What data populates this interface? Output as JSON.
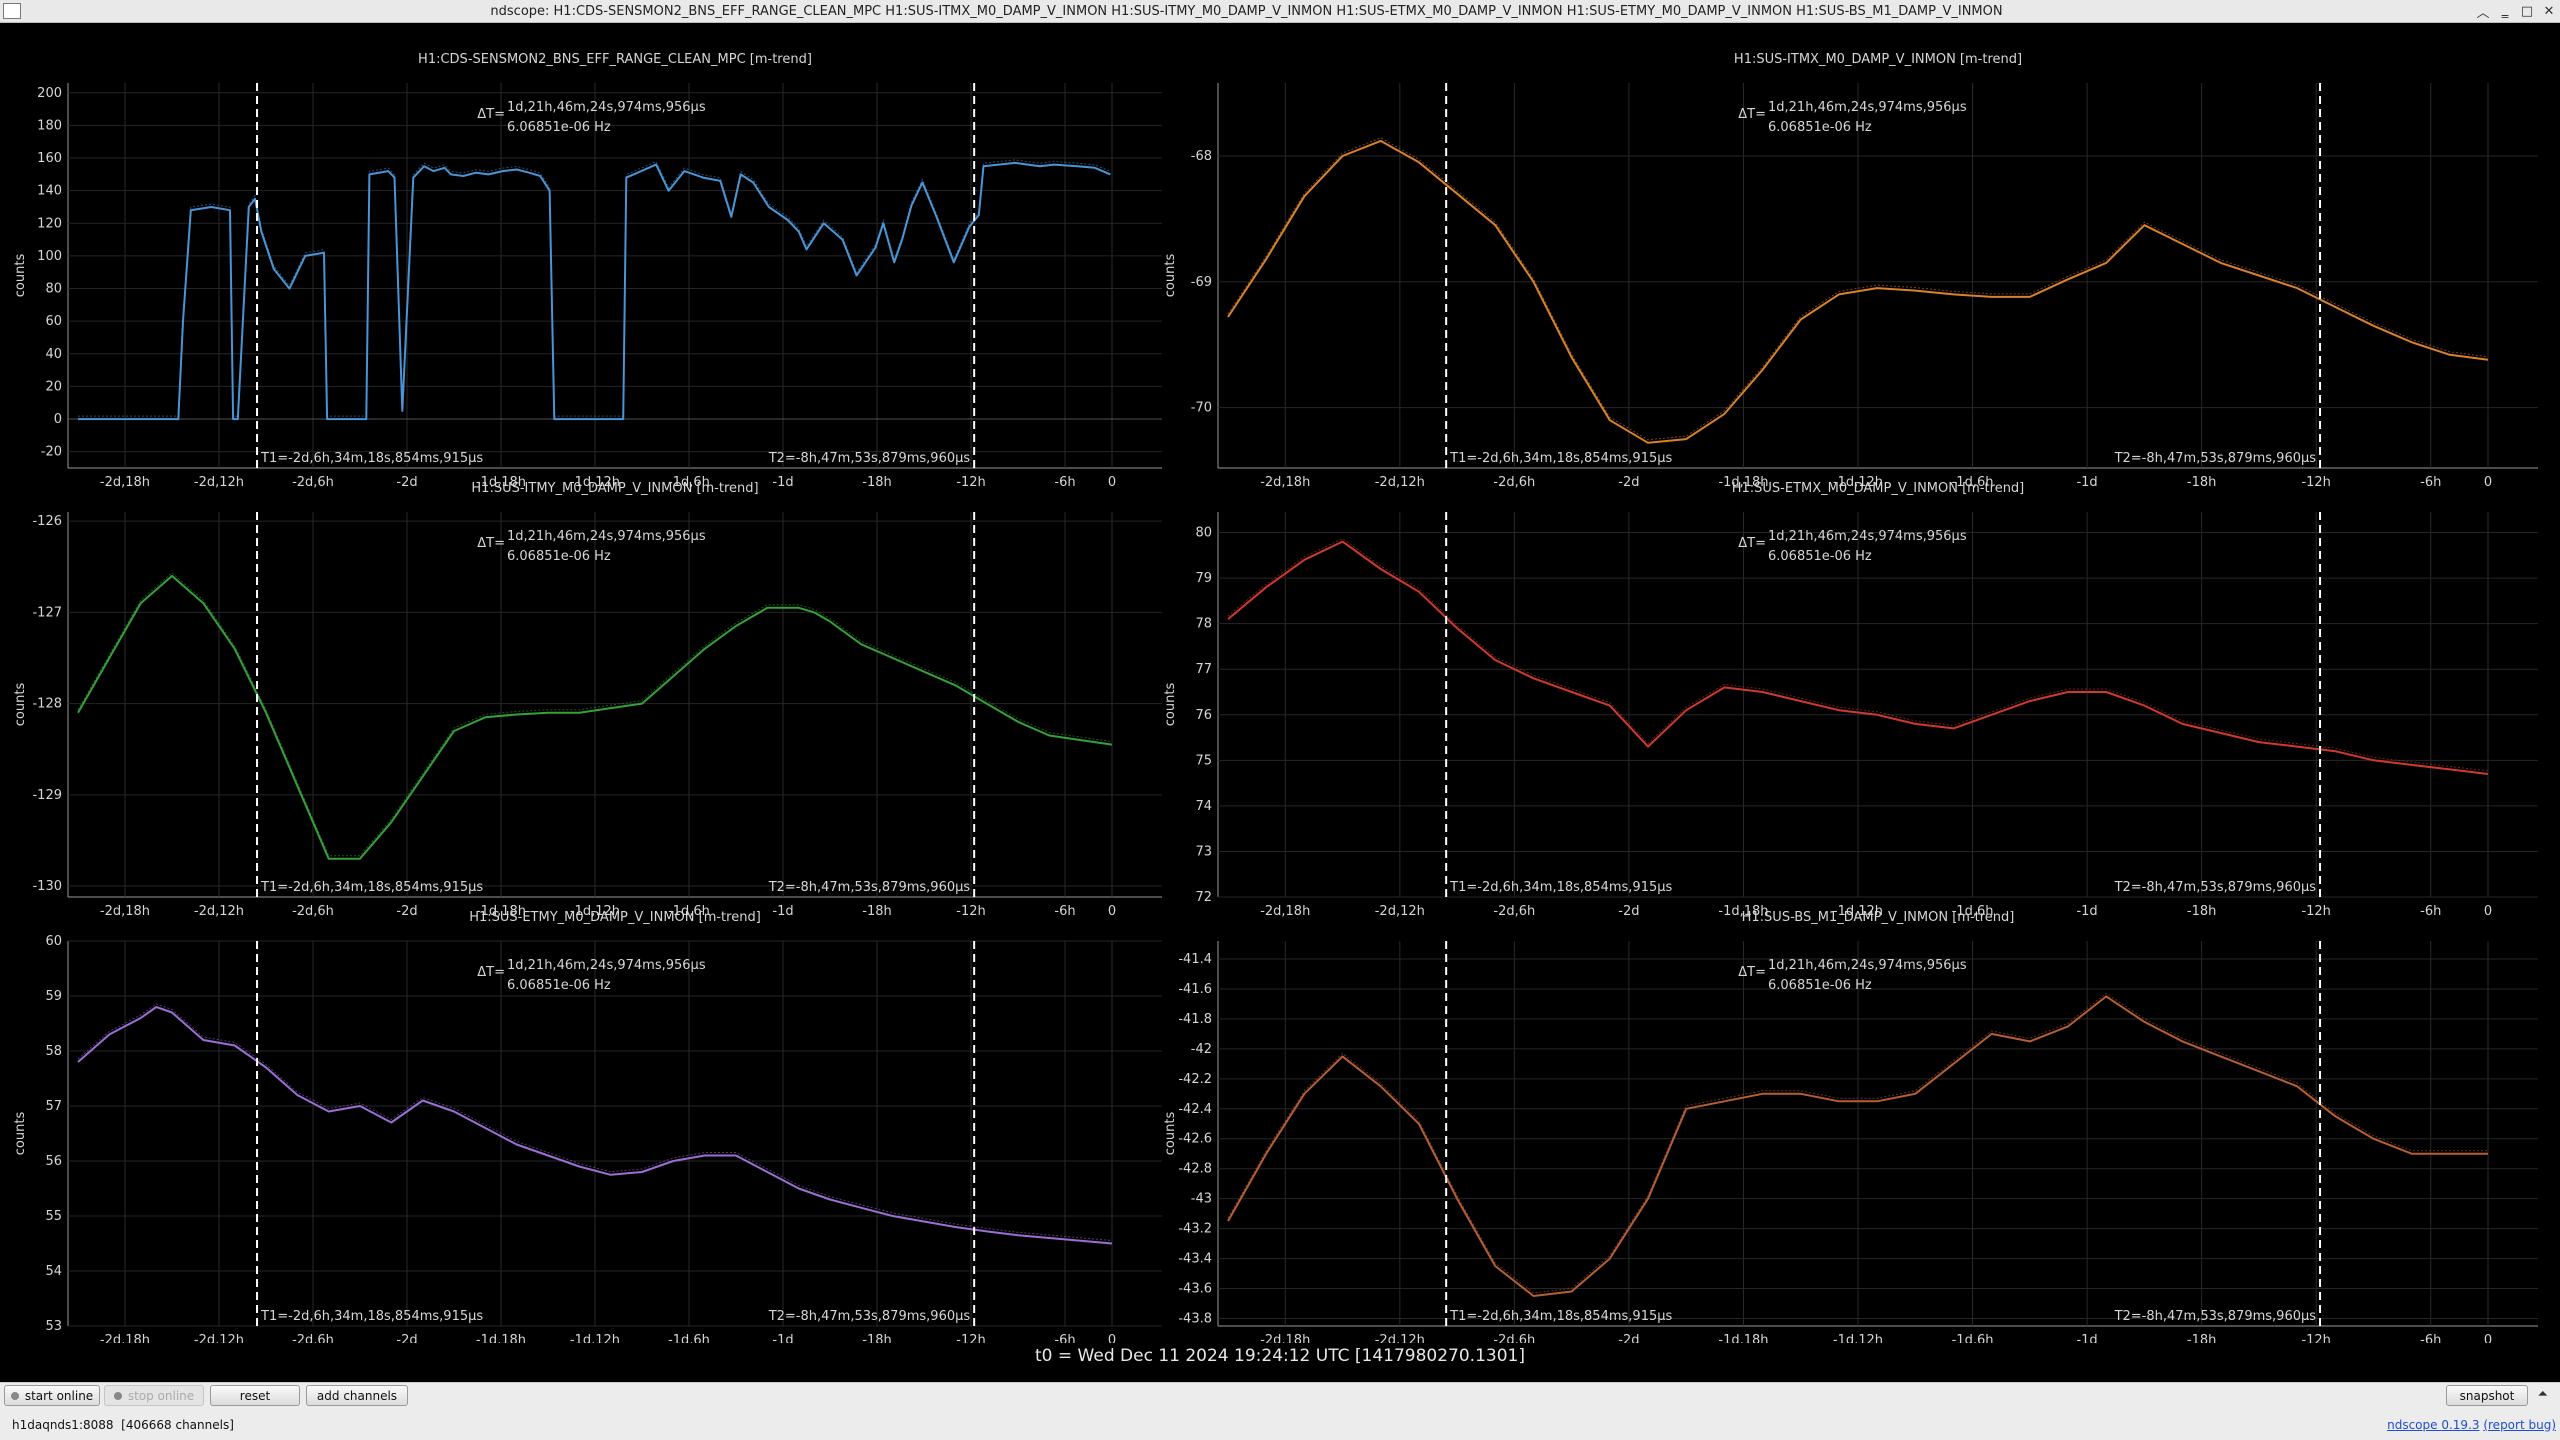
{
  "window": {
    "title": "ndscope: H1:CDS-SENSMON2_BNS_EFF_RANGE_CLEAN_MPC H1:SUS-ITMX_M0_DAMP_V_INMON H1:SUS-ITMY_M0_DAMP_V_INMON H1:SUS-ETMX_M0_DAMP_V_INMON H1:SUS-ETMY_M0_DAMP_V_INMON H1:SUS-BS_M1_DAMP_V_INMON",
    "controls": {
      "restore": "︿",
      "minimize": "‗",
      "maximize": "□",
      "close": "✕"
    }
  },
  "common": {
    "ylabel": "counts",
    "delta_t": "1d,21h,46m,24s,974ms,956µs",
    "delta_t_label": "ΔT=",
    "freq": "6.06851e-06 Hz",
    "t1": "T1=-2d,6h,34m,18s,854ms,915µs",
    "t2": "T2=-8h,47m,53s,879ms,960µs",
    "x_ticks": [
      "-2d,18h",
      "-2d,12h",
      "-2d,6h",
      "-2d",
      "-1d,18h",
      "-1d,12h",
      "-1d,6h",
      "-1d",
      "-18h",
      "-12h",
      "-6h",
      "0"
    ],
    "xlim_hours": [
      -66,
      0
    ],
    "t1_hours": -54.572,
    "t2_hours": -8.798
  },
  "t0_text": "t0 = Wed Dec 11 2024 19:24:12 UTC [1417980270.1301]",
  "toolbar": {
    "start_online": "start online",
    "stop_online": "stop online",
    "reset": "reset",
    "add_channels": "add channels",
    "snapshot": "snapshot",
    "menu_arrow": "⏶"
  },
  "status": {
    "server": "h1daqnds1:8088",
    "channels": "[406668 channels]",
    "version_prefix": "ndscope ",
    "version": "0.19.3",
    "report": "(report bug)"
  },
  "chart_data": [
    {
      "type": "line",
      "title": "H1:CDS-SENSMON2_BNS_EFF_RANGE_CLEAN_MPC [m-trend]",
      "color": "#4a95d6",
      "ylim": [
        -30,
        206
      ],
      "yticks": [
        -20,
        0,
        20,
        40,
        60,
        80,
        100,
        120,
        140,
        160,
        180,
        200
      ],
      "xlim": [
        -66,
        0
      ],
      "has_zero_hline": true,
      "series": [
        {
          "x": [
            -66,
            -59.6,
            -59.3,
            -58.8,
            -57.5,
            -56.3,
            -56.1,
            -55.8,
            -55.1,
            -54.7,
            -54.3,
            -53.5,
            -52.5,
            -51.5,
            -50.3,
            -50.1,
            -47.6,
            -47.4,
            -46.2,
            -45.8,
            -45.3,
            -44.6,
            -43.9,
            -43.3,
            -42.6,
            -42.2,
            -41.4,
            -40.6,
            -39.8,
            -38.9,
            -38.0,
            -37.2,
            -36.5,
            -35.9,
            -35.6,
            -31.2,
            -31.0,
            -29.1,
            -28.8,
            -28.3,
            -27.3,
            -26.1,
            -25.0,
            -24.3,
            -23.7,
            -22.9,
            -21.9,
            -20.7,
            -20.0,
            -19.5,
            -18.4,
            -17.2,
            -16.3,
            -15.1,
            -14.6,
            -13.9,
            -13.4,
            -12.8,
            -12.1,
            -11.2,
            -10.1,
            -9.1,
            -8.5,
            -8.2,
            -6.2,
            -4.6,
            -3.7,
            -2.2,
            -1.1,
            -0.1
          ],
          "y": [
            0,
            0,
            60,
            128,
            130,
            128,
            0,
            0,
            130,
            135,
            115,
            92,
            80,
            100,
            102,
            0,
            0,
            150,
            152,
            148,
            5,
            148,
            155,
            152,
            154,
            150,
            149,
            151,
            150,
            152,
            153,
            151,
            149,
            140,
            0,
            0,
            148,
            156,
            150,
            140,
            152,
            148,
            146,
            124,
            150,
            145,
            130,
            122,
            115,
            104,
            120,
            110,
            88,
            105,
            120,
            96,
            110,
            131,
            145,
            124,
            96,
            118,
            125,
            155,
            157,
            155,
            156,
            155,
            154,
            150
          ]
        }
      ]
    },
    {
      "type": "line",
      "title": "H1:SUS-ITMX_M0_DAMP_V_INMON [m-trend]",
      "color": "#d9822b",
      "ylim": [
        -70.48,
        -67.42
      ],
      "yticks": [
        -70,
        -69,
        -68
      ],
      "xlim": [
        -66,
        0
      ],
      "series": [
        {
          "x": [
            -66,
            -64,
            -62,
            -60,
            -58,
            -56,
            -54,
            -52,
            -50,
            -48,
            -46,
            -44,
            -42,
            -40,
            -38,
            -36,
            -34,
            -32,
            -30,
            -28,
            -26,
            -24,
            -22,
            -20,
            -19,
            -18,
            -16,
            -14,
            -12,
            -10,
            -8,
            -6,
            -4,
            -2,
            0
          ],
          "y": [
            -69.28,
            -68.82,
            -68.32,
            -68.0,
            -67.88,
            -68.05,
            -68.3,
            -68.55,
            -69.0,
            -69.6,
            -70.1,
            -70.28,
            -70.25,
            -70.05,
            -69.7,
            -69.3,
            -69.1,
            -69.05,
            -69.07,
            -69.1,
            -69.12,
            -69.12,
            -68.98,
            -68.85,
            -68.7,
            -68.55,
            -68.7,
            -68.85,
            -68.95,
            -69.05,
            -69.2,
            -69.35,
            -69.48,
            -69.58,
            -69.62
          ]
        }
      ]
    },
    {
      "type": "line",
      "title": "H1:SUS-ITMY_M0_DAMP_V_INMON [m-trend]",
      "color": "#36a03a",
      "ylim": [
        -130.12,
        -125.9
      ],
      "yticks": [
        -130,
        -129,
        -128,
        -127,
        -126
      ],
      "xlim": [
        -66,
        0
      ],
      "series": [
        {
          "x": [
            -66,
            -64,
            -62,
            -60,
            -58,
            -56,
            -54,
            -52,
            -50,
            -48,
            -46,
            -44,
            -42,
            -40,
            -38,
            -36,
            -34,
            -32,
            -30,
            -28,
            -26,
            -24,
            -22,
            -20,
            -19,
            -18,
            -16,
            -14,
            -12,
            -10,
            -8,
            -6,
            -4,
            -2,
            0
          ],
          "y": [
            -128.1,
            -127.5,
            -126.9,
            -126.6,
            -126.9,
            -127.4,
            -128.1,
            -128.9,
            -129.7,
            -129.7,
            -129.3,
            -128.8,
            -128.3,
            -128.15,
            -128.12,
            -128.1,
            -128.1,
            -128.05,
            -128.0,
            -127.7,
            -127.4,
            -127.15,
            -126.95,
            -126.95,
            -127.0,
            -127.1,
            -127.35,
            -127.5,
            -127.65,
            -127.8,
            -128.0,
            -128.2,
            -128.35,
            -128.4,
            -128.45
          ]
        }
      ]
    },
    {
      "type": "line",
      "title": "H1:SUS-ETMX_M0_DAMP_V_INMON [m-trend]",
      "color": "#cf3a2e",
      "ylim": [
        72,
        80.45
      ],
      "yticks": [
        72,
        73,
        74,
        75,
        76,
        77,
        78,
        79,
        80
      ],
      "xlim": [
        -66,
        0
      ],
      "series": [
        {
          "x": [
            -66,
            -64,
            -62,
            -60,
            -58,
            -56,
            -54,
            -52,
            -50,
            -48,
            -46,
            -44,
            -42,
            -40,
            -38,
            -36,
            -34,
            -32,
            -30,
            -28,
            -26,
            -24,
            -22,
            -20,
            -18,
            -16,
            -14,
            -12,
            -10,
            -8,
            -6,
            -4,
            -2,
            0
          ],
          "y": [
            78.1,
            78.8,
            79.4,
            79.8,
            79.2,
            78.7,
            77.9,
            77.2,
            76.8,
            76.5,
            76.2,
            75.3,
            76.1,
            76.6,
            76.5,
            76.3,
            76.1,
            76.0,
            75.8,
            75.7,
            76.0,
            76.3,
            76.5,
            76.5,
            76.2,
            75.8,
            75.6,
            75.4,
            75.3,
            75.2,
            75.0,
            74.9,
            74.8,
            74.7
          ]
        }
      ]
    },
    {
      "type": "line",
      "title": "H1:SUS-ETMY_M0_DAMP_V_INMON [m-trend]",
      "color": "#9b6fd3",
      "ylim": [
        53,
        60
      ],
      "yticks": [
        53,
        54,
        55,
        56,
        57,
        58,
        59,
        60
      ],
      "xlim": [
        -66,
        0
      ],
      "series": [
        {
          "x": [
            -66,
            -64,
            -62,
            -61,
            -60,
            -58,
            -56,
            -54,
            -52,
            -50,
            -48,
            -46,
            -44,
            -42,
            -40,
            -38,
            -36,
            -34,
            -32,
            -30,
            -28,
            -26,
            -24,
            -22,
            -20,
            -18,
            -16,
            -14,
            -12,
            -10,
            -8,
            -6,
            -4,
            -2,
            0
          ],
          "y": [
            57.8,
            58.3,
            58.6,
            58.8,
            58.7,
            58.2,
            58.1,
            57.7,
            57.2,
            56.9,
            57.0,
            56.7,
            57.1,
            56.9,
            56.6,
            56.3,
            56.1,
            55.9,
            55.75,
            55.8,
            56.0,
            56.1,
            56.1,
            55.8,
            55.5,
            55.3,
            55.15,
            55.0,
            54.9,
            54.8,
            54.72,
            54.65,
            54.6,
            54.55,
            54.5
          ]
        }
      ]
    },
    {
      "type": "line",
      "title": "H1:SUS-BS_M1_DAMP_V_INMON [m-trend]",
      "color": "#b65e34",
      "ylim": [
        -43.85,
        -41.28
      ],
      "yticks": [
        -43.8,
        -43.6,
        -43.4,
        -43.2,
        -43,
        -42.8,
        -42.6,
        -42.4,
        -42.2,
        -42,
        -41.8,
        -41.6,
        -41.4
      ],
      "xlim": [
        -66,
        0
      ],
      "series": [
        {
          "x": [
            -66,
            -64,
            -62,
            -60,
            -58,
            -56,
            -54,
            -52,
            -50,
            -48,
            -46,
            -44,
            -42,
            -40,
            -38,
            -36,
            -34,
            -32,
            -30,
            -28,
            -26,
            -24,
            -22,
            -20,
            -18,
            -16,
            -14,
            -12,
            -10,
            -8,
            -6,
            -4,
            -2,
            0
          ],
          "y": [
            -43.15,
            -42.7,
            -42.3,
            -42.05,
            -42.25,
            -42.5,
            -43.0,
            -43.45,
            -43.65,
            -43.62,
            -43.4,
            -43.0,
            -42.4,
            -42.35,
            -42.3,
            -42.3,
            -42.35,
            -42.35,
            -42.3,
            -42.1,
            -41.9,
            -41.95,
            -41.85,
            -41.65,
            -41.82,
            -41.95,
            -42.05,
            -42.15,
            -42.25,
            -42.45,
            -42.6,
            -42.7,
            -42.7,
            -42.7
          ]
        }
      ]
    }
  ]
}
